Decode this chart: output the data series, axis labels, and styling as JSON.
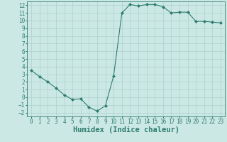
{
  "x": [
    0,
    1,
    2,
    3,
    4,
    5,
    6,
    7,
    8,
    9,
    10,
    11,
    12,
    13,
    14,
    15,
    16,
    17,
    18,
    19,
    20,
    21,
    22,
    23
  ],
  "y": [
    3.5,
    2.7,
    2.0,
    1.2,
    0.3,
    -0.3,
    -0.2,
    -1.3,
    -1.8,
    -1.1,
    2.8,
    11.0,
    12.1,
    11.9,
    12.1,
    12.1,
    11.8,
    11.0,
    11.1,
    11.1,
    9.9,
    9.9,
    9.8,
    9.7
  ],
  "line_color": "#2d7d6e",
  "marker": "D",
  "marker_size": 2.0,
  "bg_color": "#cce8e4",
  "grid_color": "#b0d4cf",
  "xlabel": "Humidex (Indice chaleur)",
  "xlim": [
    -0.5,
    23.5
  ],
  "ylim": [
    -2.5,
    12.5
  ],
  "yticks": [
    -2,
    -1,
    0,
    1,
    2,
    3,
    4,
    5,
    6,
    7,
    8,
    9,
    10,
    11,
    12
  ],
  "xticks": [
    0,
    1,
    2,
    3,
    4,
    5,
    6,
    7,
    8,
    9,
    10,
    11,
    12,
    13,
    14,
    15,
    16,
    17,
    18,
    19,
    20,
    21,
    22,
    23
  ],
  "tick_fontsize": 5.5,
  "xlabel_fontsize": 7.5
}
